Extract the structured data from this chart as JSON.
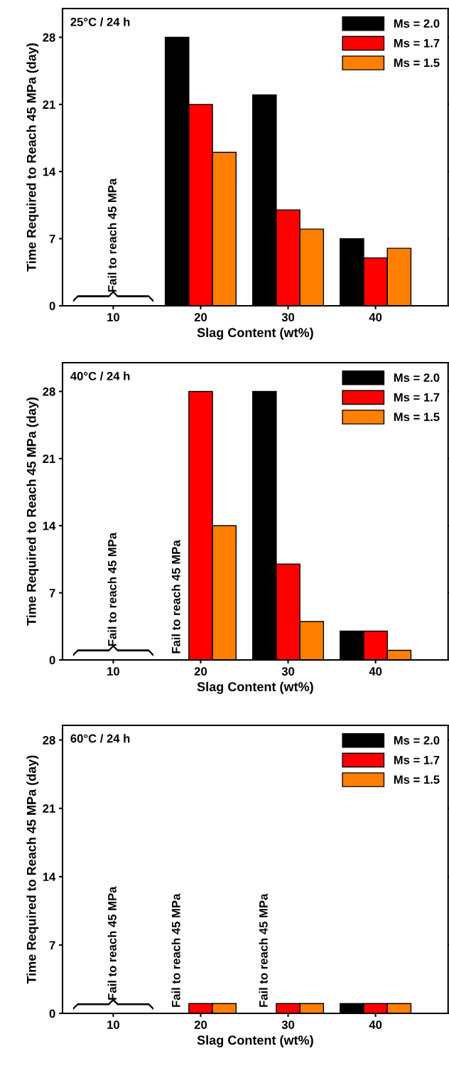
{
  "chart_data": [
    {
      "type": "bar",
      "title": "25°C / 24 h",
      "xlabel": "Slag Content (wt%)",
      "ylabel": "Time Required to Reach 45 MPa (day)",
      "categories": [
        "10",
        "20",
        "30",
        "40"
      ],
      "series": [
        {
          "name": "Ms = 2.0",
          "color": "#000000",
          "values": [
            null,
            28,
            22,
            7
          ]
        },
        {
          "name": "Ms = 1.7",
          "color": "#ff0000",
          "values": [
            null,
            21,
            10,
            5
          ]
        },
        {
          "name": "Ms = 1.5",
          "color": "#ff8000",
          "values": [
            null,
            16,
            8,
            6
          ]
        }
      ],
      "ylim": [
        0,
        31
      ],
      "yticks": [
        0,
        7,
        14,
        21,
        28
      ],
      "legend": "top right",
      "grid": false,
      "annotations": [
        "Fail to reach 45 MPa"
      ]
    },
    {
      "type": "bar",
      "title": "40°C / 24 h",
      "xlabel": "Slag Content (wt%)",
      "ylabel": "Time Required to Reach 45 MPa (day)",
      "categories": [
        "10",
        "20",
        "30",
        "40"
      ],
      "series": [
        {
          "name": "Ms = 2.0",
          "color": "#000000",
          "values": [
            null,
            null,
            28,
            3
          ]
        },
        {
          "name": "Ms = 1.7",
          "color": "#ff0000",
          "values": [
            null,
            28,
            10,
            3
          ]
        },
        {
          "name": "Ms = 1.5",
          "color": "#ff8000",
          "values": [
            null,
            14,
            4,
            1
          ]
        }
      ],
      "ylim": [
        0,
        31
      ],
      "yticks": [
        0,
        7,
        14,
        21,
        28
      ],
      "legend": "top right",
      "grid": false,
      "annotations": [
        "Fail to reach 45 MPa",
        "Fail to reach 45 MPa"
      ]
    },
    {
      "type": "bar",
      "title": "60°C / 24 h",
      "xlabel": "Slag Content (wt%)",
      "ylabel": "Time Required to Reach 45 MPa (day)",
      "categories": [
        "10",
        "20",
        "30",
        "40"
      ],
      "series": [
        {
          "name": "Ms = 2.0",
          "color": "#000000",
          "values": [
            null,
            null,
            null,
            1
          ]
        },
        {
          "name": "Ms = 1.7",
          "color": "#ff0000",
          "values": [
            null,
            1,
            1,
            1
          ]
        },
        {
          "name": "Ms = 1.5",
          "color": "#ff8000",
          "values": [
            null,
            1,
            1,
            1
          ]
        }
      ],
      "ylim": [
        0,
        29.5
      ],
      "yticks": [
        0,
        7,
        14,
        21,
        28
      ],
      "legend": "top right",
      "grid": false,
      "annotations": [
        "Fail to reach 45 MPa",
        "Fail to reach 45 MPa",
        "Fail to reach 45 MPa"
      ]
    }
  ]
}
